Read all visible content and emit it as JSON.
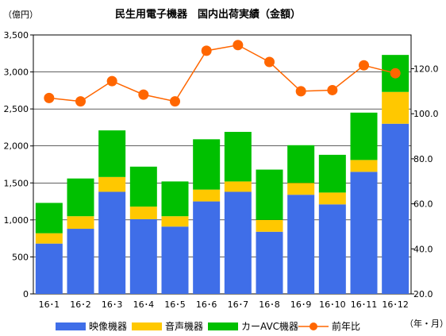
{
  "chart_data": {
    "type": "bar",
    "title": "民生用電子機器　国内出荷実績（金額）",
    "left_unit": "（億円）",
    "x_unit": "（年・月）",
    "categories": [
      "16･1",
      "16･2",
      "16･3",
      "16･4",
      "16･5",
      "16･6",
      "16･7",
      "16･8",
      "16･9",
      "16･10",
      "16･11",
      "16･12"
    ],
    "y_left": {
      "min": 0,
      "max": 3500,
      "ticks": [
        "0",
        "500",
        "1,000",
        "1,500",
        "2,000",
        "2,500",
        "3,000",
        "3,500"
      ]
    },
    "y_right": {
      "min": 20,
      "max": 135,
      "ticks": [
        "20.0",
        "40.0",
        "60.0",
        "80.0",
        "100.0",
        "120.0"
      ]
    },
    "stacked_series": [
      {
        "name": "映像機器",
        "color": "#3f6ee8",
        "values": [
          680,
          880,
          1380,
          1010,
          910,
          1250,
          1380,
          840,
          1340,
          1210,
          1650,
          2300
        ]
      },
      {
        "name": "音声機器",
        "color": "#ffc800",
        "values": [
          140,
          170,
          200,
          170,
          140,
          160,
          140,
          160,
          160,
          160,
          160,
          430
        ]
      },
      {
        "name": "カーAVC機器",
        "color": "#00c000",
        "values": [
          410,
          510,
          630,
          540,
          470,
          680,
          670,
          680,
          510,
          510,
          640,
          500
        ]
      }
    ],
    "line_series": {
      "name": "前年比",
      "color": "#ff6600",
      "axis": "right",
      "values": [
        107.0,
        105.5,
        114.5,
        108.5,
        105.5,
        128.0,
        130.5,
        123.0,
        110.0,
        110.5,
        121.5,
        118.0
      ]
    },
    "grid": "horizontal",
    "legend": "bottom"
  }
}
